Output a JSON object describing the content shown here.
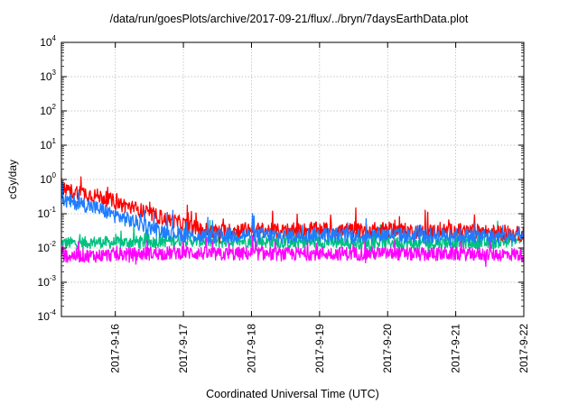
{
  "chart_data": {
    "type": "line",
    "title": "/data/run/goesPlots/archive/2017-09-21/flux/../bryn/7daysEarthData.plot",
    "xlabel": "Coordinated Universal Time (UTC)",
    "ylabel": "cGy/day",
    "x_ticks": [
      "2017-9-16",
      "2017-9-17",
      "2017-9-18",
      "2017-9-19",
      "2017-9-20",
      "2017-9-21",
      "2017-9-22"
    ],
    "xlim": [
      "2017-9-15 05:00",
      "2017-9-22 00:00"
    ],
    "y_scale": "log",
    "ylim": [
      0.0001,
      10000
    ],
    "y_ticks": [
      {
        "base": "10",
        "exp": "-4"
      },
      {
        "base": "10",
        "exp": "-3"
      },
      {
        "base": "10",
        "exp": "-2"
      },
      {
        "base": "10",
        "exp": "-1"
      },
      {
        "base": "10",
        "exp": "0"
      },
      {
        "base": "10",
        "exp": "1"
      },
      {
        "base": "10",
        "exp": "2"
      },
      {
        "base": "10",
        "exp": "3"
      },
      {
        "base": "10",
        "exp": "4"
      }
    ],
    "grid": true,
    "series": [
      {
        "color": "#ff0000",
        "x": [
          "2017-9-15 05:00",
          "2017-9-15 12:00",
          "2017-9-15 18:00",
          "2017-9-16 00:00",
          "2017-9-16 06:00",
          "2017-9-16 12:00",
          "2017-9-16 18:00",
          "2017-9-17 00:00",
          "2017-9-17 06:00",
          "2017-9-17 12:00",
          "2017-9-18 00:00",
          "2017-9-18 12:00",
          "2017-9-19 00:00",
          "2017-9-19 12:00",
          "2017-9-20 00:00",
          "2017-9-20 12:00",
          "2017-9-21 00:00",
          "2017-9-21 12:00",
          "2017-9-22 00:00"
        ],
        "values": [
          0.5,
          0.42,
          0.32,
          0.22,
          0.15,
          0.1,
          0.07,
          0.05,
          0.035,
          0.03,
          0.035,
          0.03,
          0.035,
          0.032,
          0.035,
          0.03,
          0.032,
          0.03,
          0.025
        ]
      },
      {
        "color": "#1e7cff",
        "x": [
          "2017-9-15 05:00",
          "2017-9-15 12:00",
          "2017-9-15 18:00",
          "2017-9-16 00:00",
          "2017-9-16 06:00",
          "2017-9-16 12:00",
          "2017-9-16 18:00",
          "2017-9-17 00:00",
          "2017-9-17 06:00",
          "2017-9-17 12:00",
          "2017-9-18 00:00",
          "2017-9-18 12:00",
          "2017-9-19 00:00",
          "2017-9-19 12:00",
          "2017-9-20 00:00",
          "2017-9-20 12:00",
          "2017-9-21 00:00",
          "2017-9-21 12:00",
          "2017-9-22 00:00"
        ],
        "values": [
          0.25,
          0.2,
          0.14,
          0.09,
          0.06,
          0.04,
          0.03,
          0.025,
          0.022,
          0.022,
          0.025,
          0.022,
          0.025,
          0.023,
          0.025,
          0.022,
          0.024,
          0.022,
          0.02
        ]
      },
      {
        "color": "#00c080",
        "x": [
          "2017-9-15 05:00",
          "2017-9-15 12:00",
          "2017-9-15 18:00",
          "2017-9-16 00:00",
          "2017-9-16 06:00",
          "2017-9-16 12:00",
          "2017-9-16 18:00",
          "2017-9-17 00:00",
          "2017-9-17 06:00",
          "2017-9-17 12:00",
          "2017-9-18 00:00",
          "2017-9-18 12:00",
          "2017-9-19 00:00",
          "2017-9-19 12:00",
          "2017-9-20 00:00",
          "2017-9-20 12:00",
          "2017-9-21 00:00",
          "2017-9-21 12:00",
          "2017-9-22 00:00"
        ],
        "values": [
          0.014,
          0.014,
          0.015,
          0.014,
          0.015,
          0.015,
          0.016,
          0.017,
          0.016,
          0.015,
          0.016,
          0.014,
          0.015,
          0.014,
          0.015,
          0.013,
          0.015,
          0.014,
          0.018
        ]
      },
      {
        "color": "#ff00ff",
        "x": [
          "2017-9-15 05:00",
          "2017-9-15 12:00",
          "2017-9-15 18:00",
          "2017-9-16 00:00",
          "2017-9-16 06:00",
          "2017-9-16 12:00",
          "2017-9-16 18:00",
          "2017-9-17 00:00",
          "2017-9-17 06:00",
          "2017-9-17 12:00",
          "2017-9-18 00:00",
          "2017-9-18 12:00",
          "2017-9-19 00:00",
          "2017-9-19 12:00",
          "2017-9-20 00:00",
          "2017-9-20 12:00",
          "2017-9-21 00:00",
          "2017-9-21 12:00",
          "2017-9-22 00:00"
        ],
        "values": [
          0.006,
          0.006,
          0.006,
          0.0065,
          0.0065,
          0.007,
          0.007,
          0.0075,
          0.007,
          0.0065,
          0.007,
          0.0065,
          0.007,
          0.0068,
          0.007,
          0.0065,
          0.0068,
          0.0065,
          0.0065
        ]
      }
    ]
  }
}
